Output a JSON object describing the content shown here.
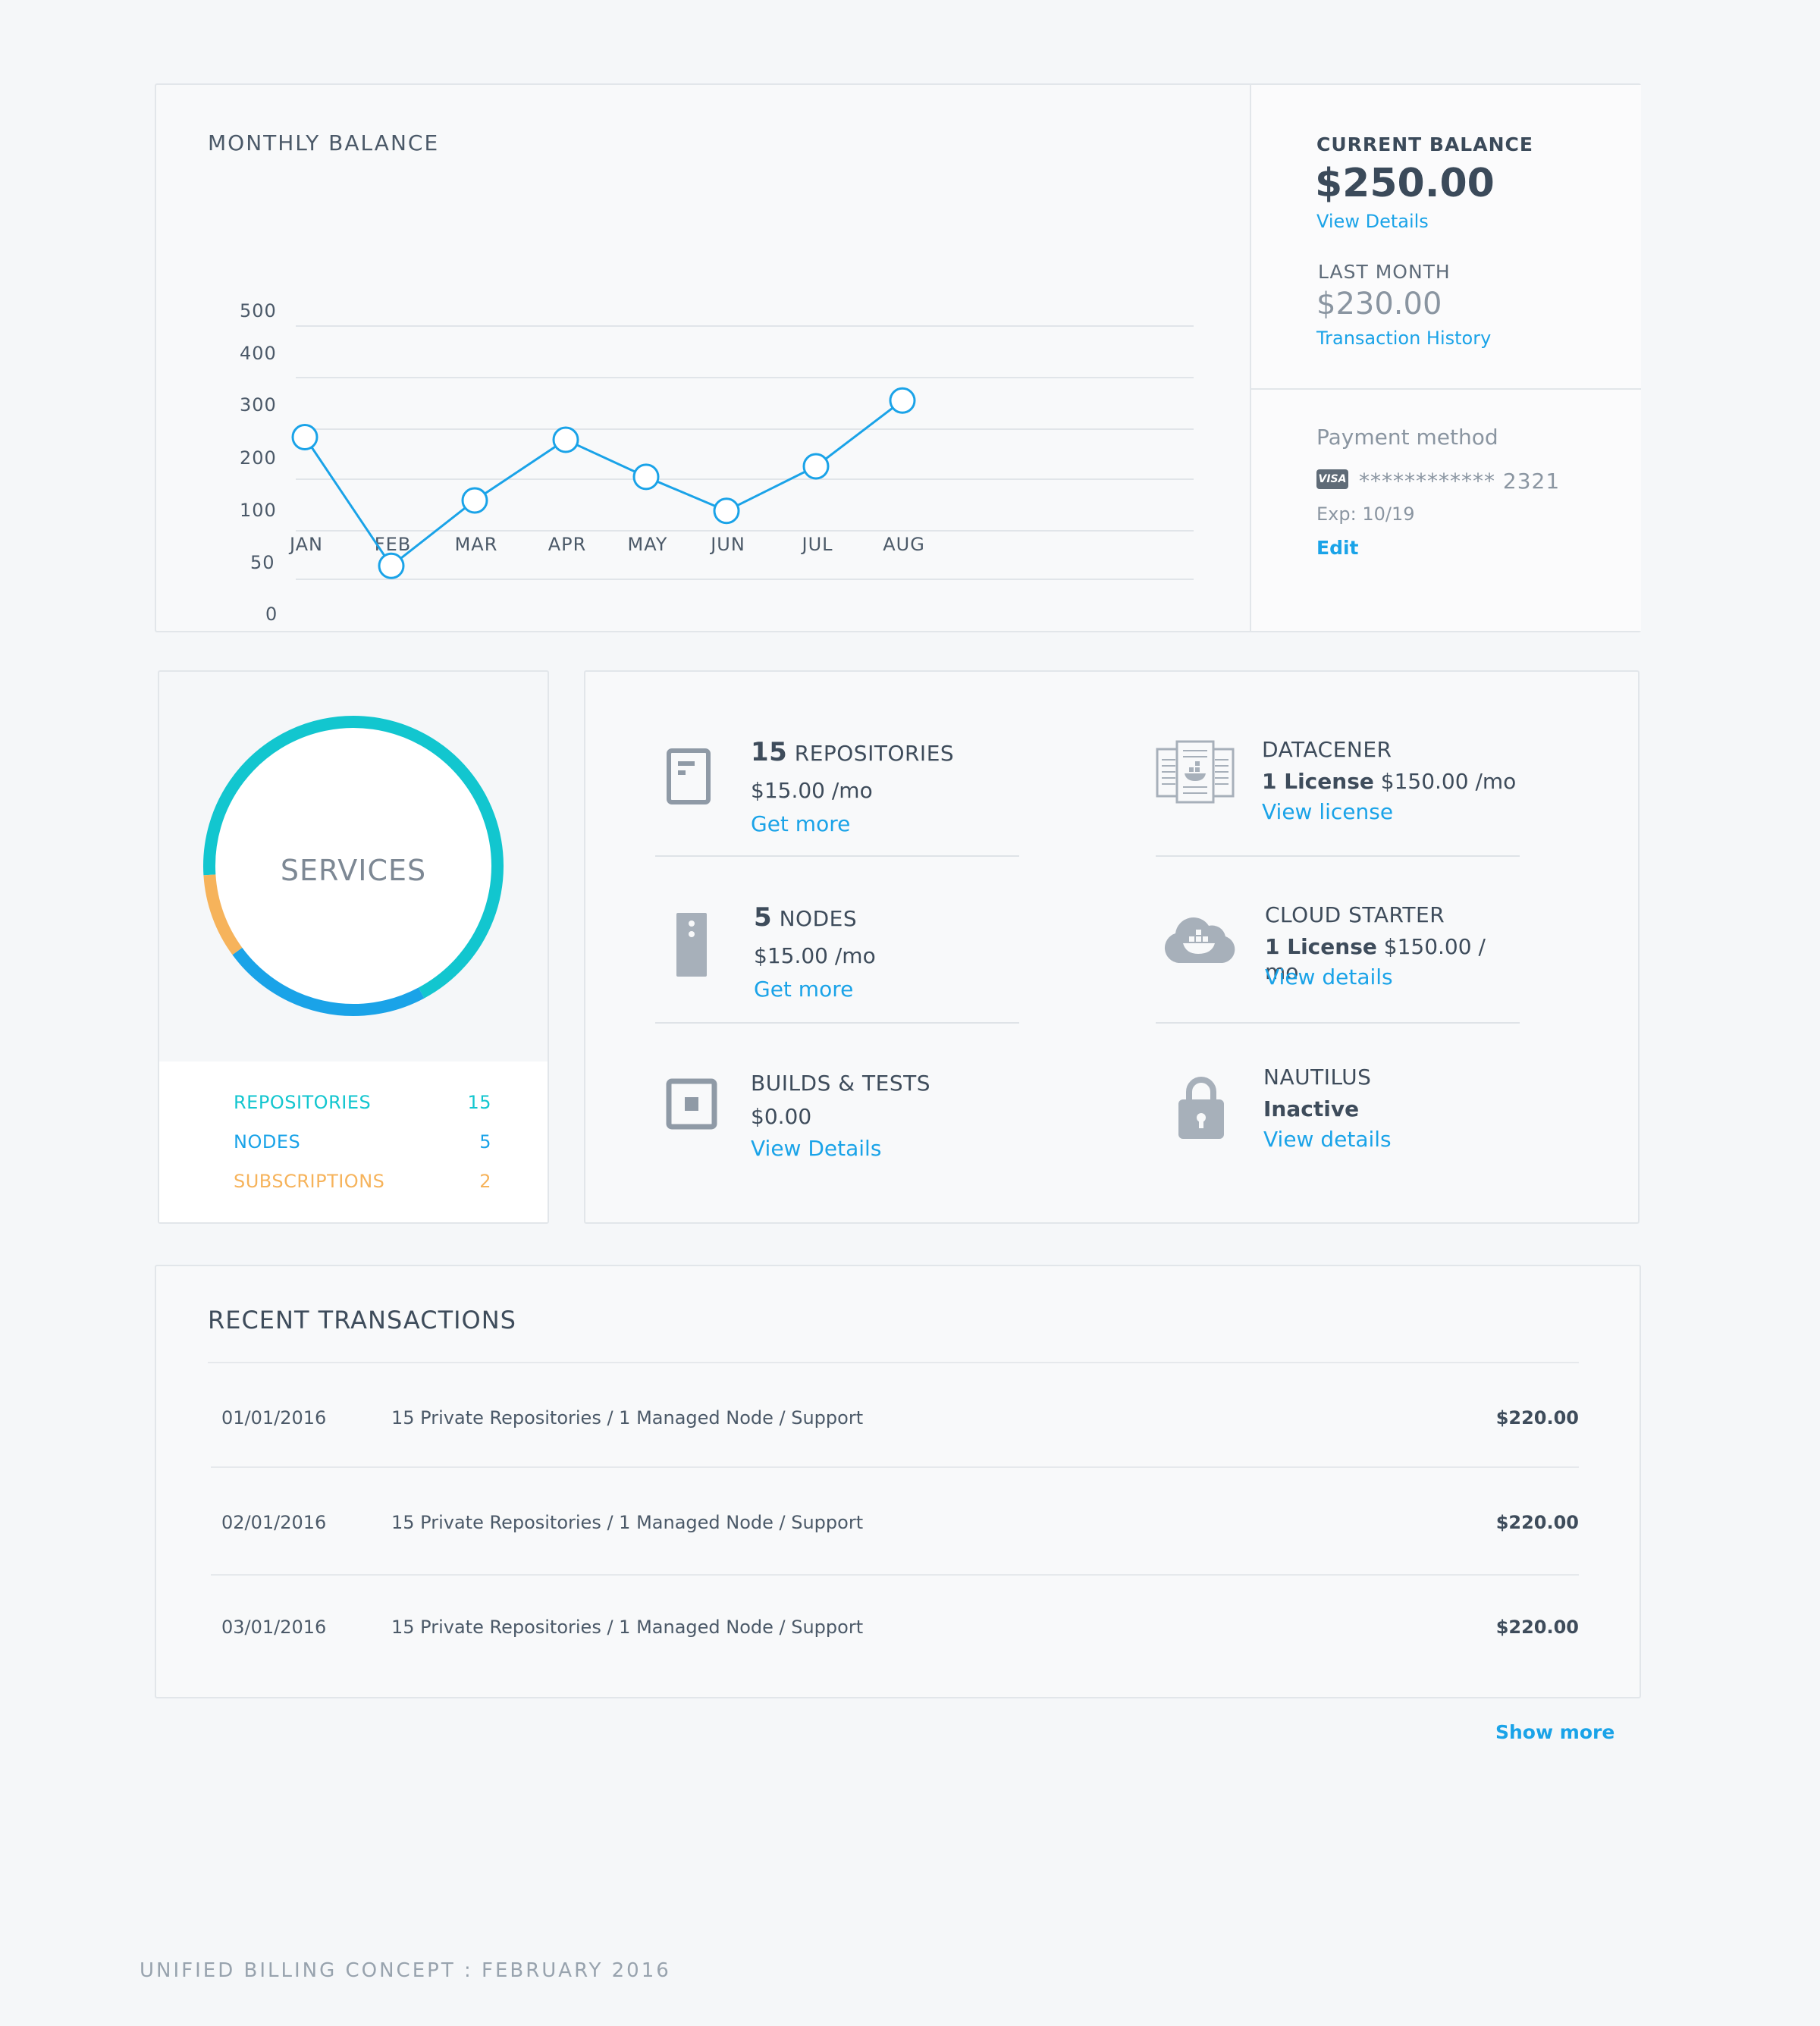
{
  "balance_chart": {
    "title": "MONTHLY BALANCE",
    "chart_data": {
      "type": "line",
      "categories": [
        "JAN",
        "FEB",
        "MAR",
        "APR",
        "MAY",
        "JUN",
        "JUL",
        "AUG"
      ],
      "y_ticks": [
        "500",
        "400",
        "300",
        "200",
        "100",
        "50",
        "0"
      ],
      "y_tick_values": [
        500,
        400,
        300,
        200,
        100,
        50,
        0
      ],
      "values": [
        265,
        60,
        145,
        260,
        190,
        125,
        210,
        335
      ],
      "ylim": [
        0,
        500
      ],
      "grid": true,
      "color": "#1aa3e8"
    }
  },
  "balance": {
    "current_label": "CURRENT BALANCE",
    "current_value": "$250.00",
    "current_link": "View Details",
    "last_month_label": "LAST MONTH",
    "last_month_value": "$230.00",
    "last_month_link": "Transaction History"
  },
  "payment": {
    "label": "Payment method",
    "card_brand": "VISA",
    "card_number": "************ 2321",
    "expiry": "Exp: 10/19",
    "edit": "Edit"
  },
  "services": {
    "center_label": "SERVICES",
    "segments": [
      {
        "name": "REPOSITORIES",
        "value": 15,
        "color": "#12c6cf"
      },
      {
        "name": "NODES",
        "value": 5,
        "color": "#1aa3e8"
      },
      {
        "name": "SUBSCRIPTIONS",
        "value": 2,
        "color": "#f6b35b"
      }
    ],
    "legend": [
      {
        "label": "REPOSITORIES",
        "count": "15",
        "color": "#12c6cf"
      },
      {
        "label": "NODES",
        "count": "5",
        "color": "#1aa3e8"
      },
      {
        "label": "SUBSCRIPTIONS",
        "count": "2",
        "color": "#f6b35b"
      }
    ]
  },
  "subscriptions": {
    "repositories": {
      "count": "15",
      "title": "REPOSITORIES",
      "price": "$15.00 /mo",
      "link": "Get more",
      "icon": "repository-icon"
    },
    "nodes": {
      "count": "5",
      "title": "NODES",
      "price": "$15.00 /mo",
      "link": "Get more",
      "icon": "node-server-icon"
    },
    "builds": {
      "title": "BUILDS & TESTS",
      "price": "$0.00",
      "link": "View Details",
      "icon": "build-chip-icon"
    },
    "datacenter": {
      "title": "DATACENER",
      "license_bold": "1 License",
      "price": "$150.00 /mo",
      "link": "View license",
      "icon": "datacenter-docs-icon"
    },
    "cloud": {
      "title": "CLOUD STARTER",
      "license_bold": "1 License",
      "price": "$150.00 / mo",
      "link": "View details",
      "icon": "docker-cloud-icon"
    },
    "nautilus": {
      "title": "NAUTILUS",
      "status": "Inactive",
      "link": "View details",
      "icon": "lock-icon"
    }
  },
  "transactions": {
    "title": "RECENT TRANSACTIONS",
    "rows": [
      {
        "date": "01/01/2016",
        "description": "15 Private Repositories / 1 Managed Node / Support",
        "amount": "$220.00"
      },
      {
        "date": "02/01/2016",
        "description": "15 Private Repositories / 1 Managed Node / Support",
        "amount": "$220.00"
      },
      {
        "date": "03/01/2016",
        "description": "15 Private Repositories / 1 Managed Node / Support",
        "amount": "$220.00"
      }
    ],
    "show_more": "Show more"
  },
  "footer": "UNIFIED BILLING CONCEPT : FEBRUARY 2016"
}
